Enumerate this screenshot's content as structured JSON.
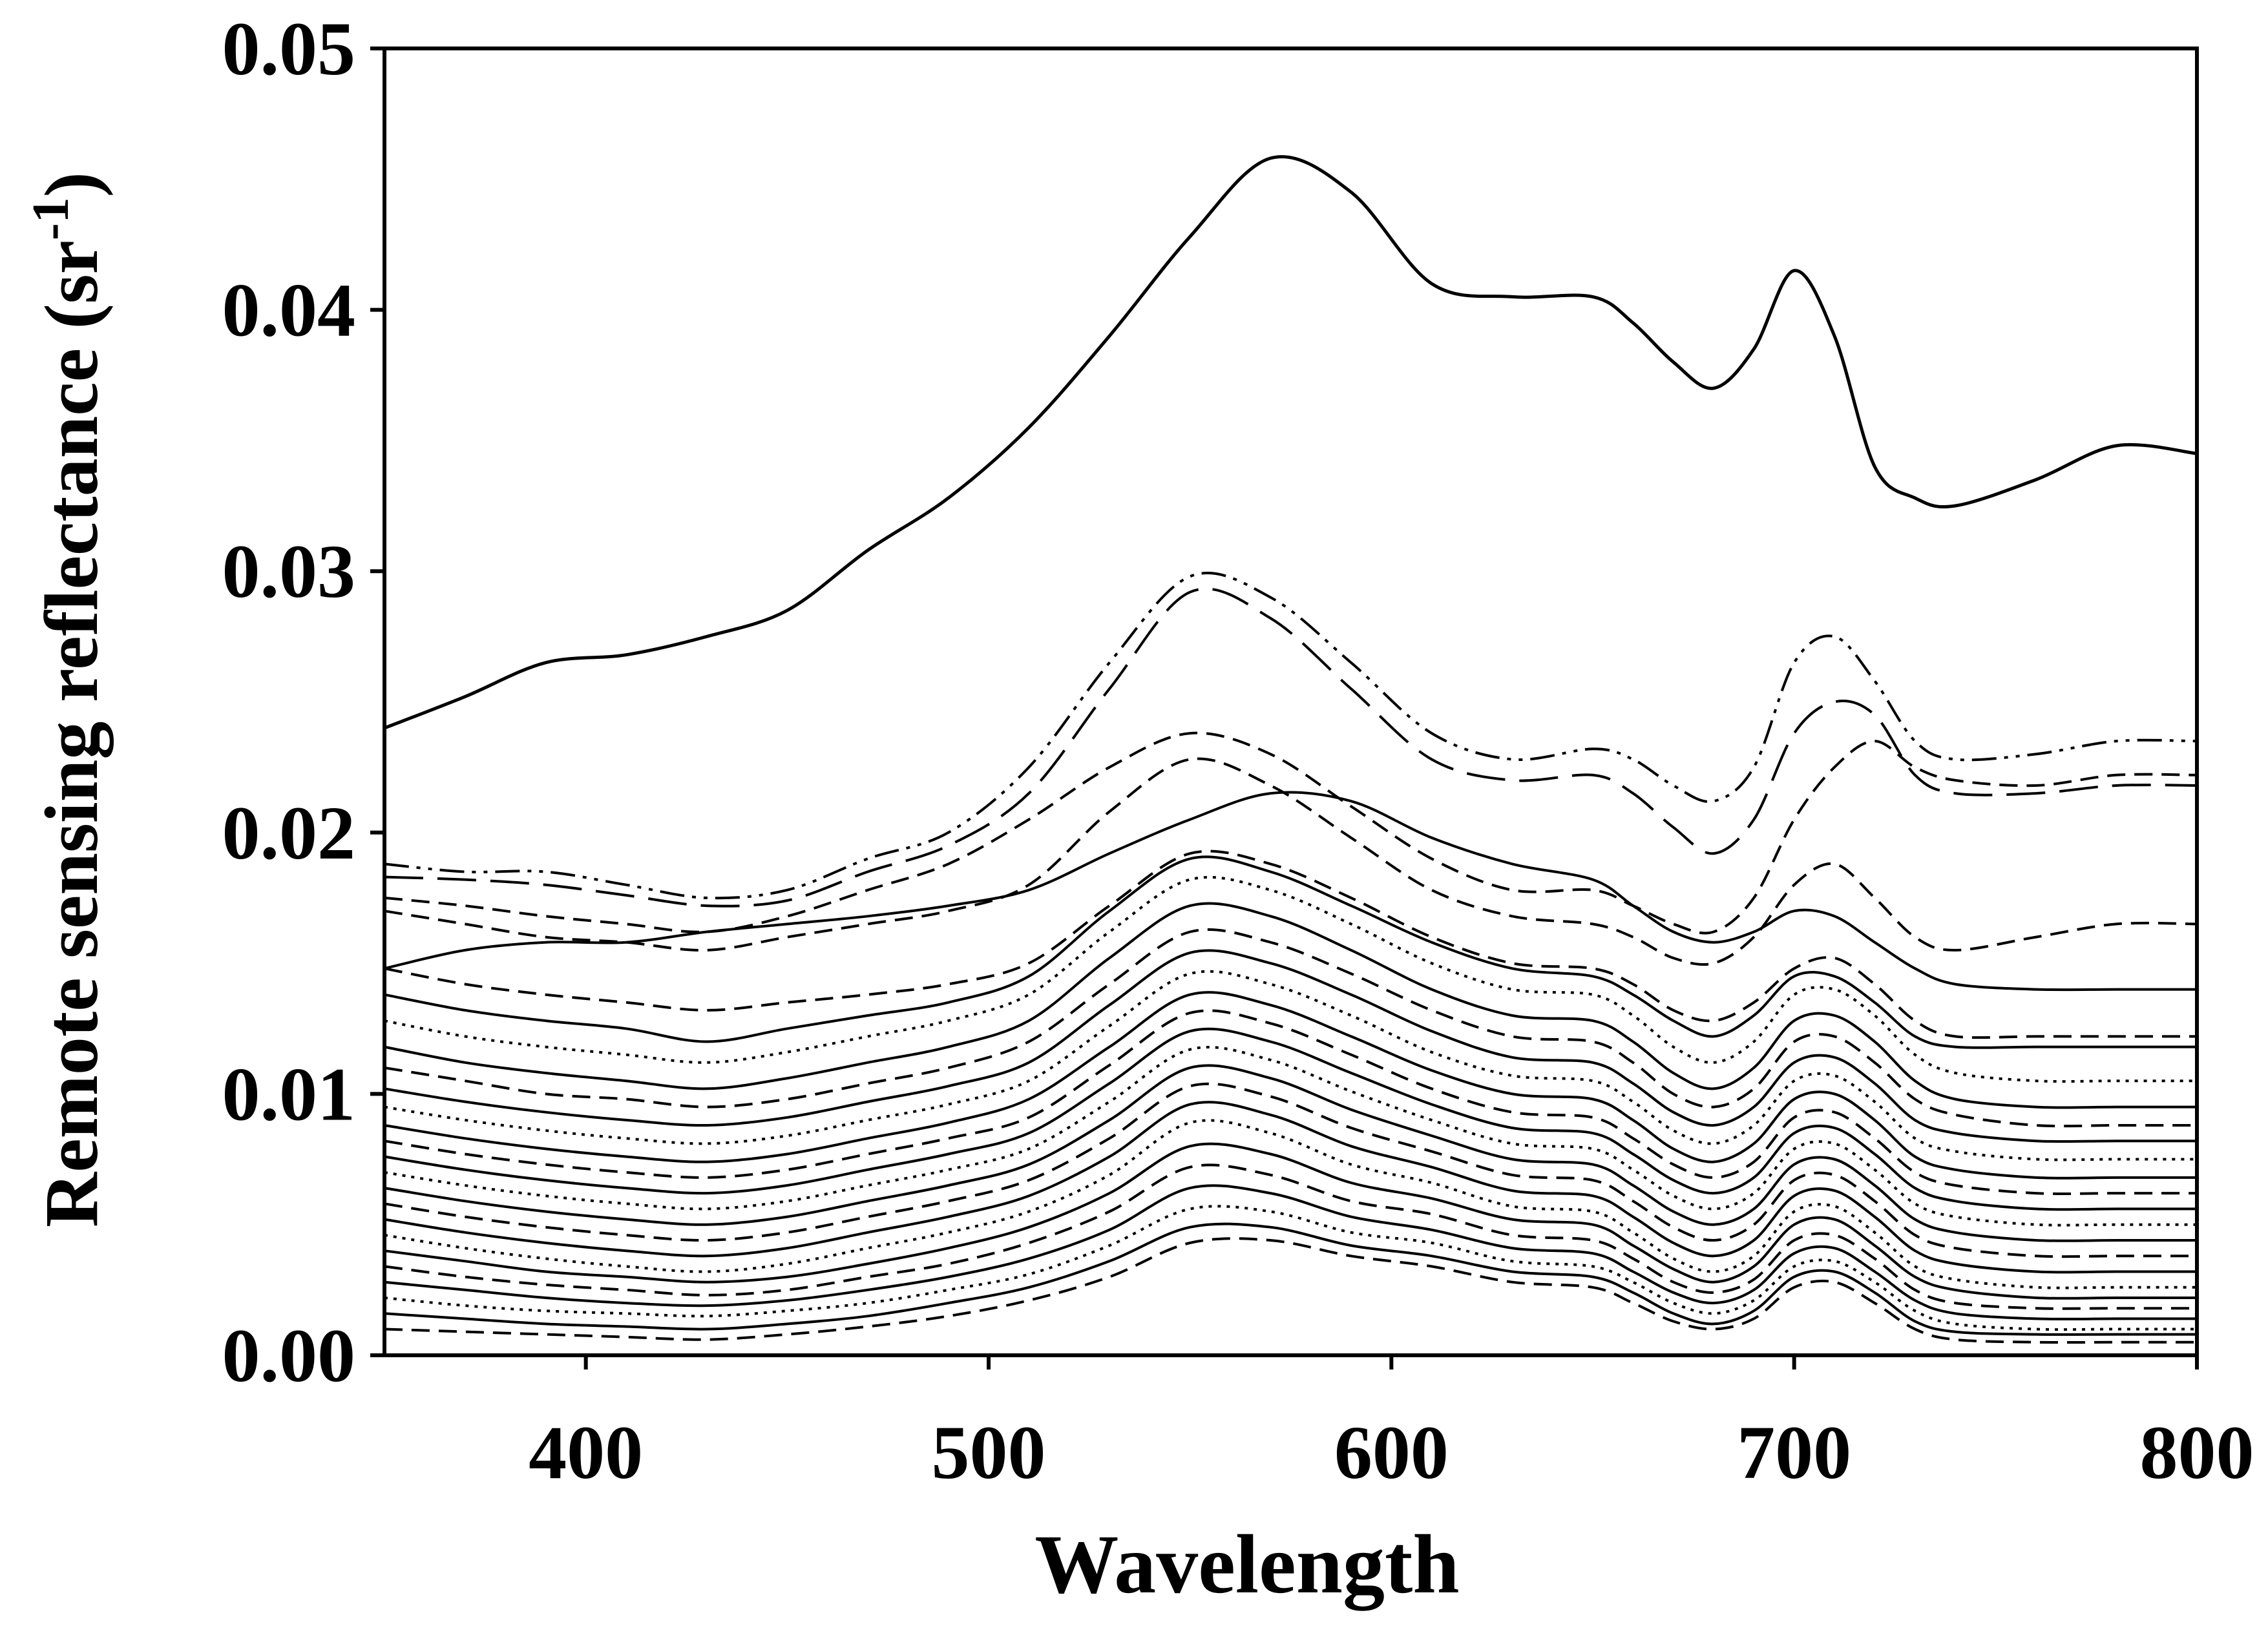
{
  "chart_data": {
    "type": "line",
    "title": "",
    "xlabel": "Wavelength",
    "ylabel_main": "Remote sensing reflectance (sr",
    "ylabel_sup": "-1",
    "ylabel_close": ")",
    "xlim": [
      350,
      800
    ],
    "ylim": [
      0,
      0.05
    ],
    "xticks": [
      400,
      500,
      600,
      700,
      800
    ],
    "xtick_labels": [
      "400",
      "500",
      "600",
      "700",
      "800"
    ],
    "yticks": [
      0,
      0.01,
      0.02,
      0.03,
      0.04,
      0.05
    ],
    "ytick_labels": [
      "0.00",
      "0.01",
      "0.02",
      "0.03",
      "0.04",
      "0.05"
    ],
    "grid": false,
    "legend": "none",
    "line_color": "#000000",
    "x": [
      350,
      370,
      390,
      410,
      430,
      450,
      470,
      490,
      510,
      530,
      550,
      570,
      590,
      610,
      630,
      650,
      660,
      670,
      680,
      690,
      700,
      710,
      720,
      730,
      740,
      760,
      780,
      800
    ],
    "series": [
      {
        "name": "s1",
        "style": "solid",
        "values": [
          0.024,
          0.0252,
          0.0265,
          0.0268,
          0.0275,
          0.0285,
          0.0308,
          0.0328,
          0.0355,
          0.039,
          0.0428,
          0.0458,
          0.0445,
          0.041,
          0.0405,
          0.0405,
          0.0395,
          0.038,
          0.037,
          0.0385,
          0.0415,
          0.039,
          0.034,
          0.0328,
          0.0325,
          0.0335,
          0.0348,
          0.0345
        ]
      },
      {
        "name": "s2",
        "style": "dash-dot-dot",
        "values": [
          0.0188,
          0.0185,
          0.0185,
          0.018,
          0.0175,
          0.0178,
          0.019,
          0.02,
          0.0225,
          0.0265,
          0.0298,
          0.029,
          0.0265,
          0.0238,
          0.0228,
          0.0232,
          0.0228,
          0.0218,
          0.0212,
          0.0225,
          0.0265,
          0.0275,
          0.0258,
          0.0235,
          0.0228,
          0.023,
          0.0235,
          0.0235
        ]
      },
      {
        "name": "s3",
        "style": "long-dash",
        "values": [
          0.0183,
          0.0182,
          0.018,
          0.0176,
          0.0172,
          0.0174,
          0.0185,
          0.0195,
          0.0215,
          0.0255,
          0.0292,
          0.0282,
          0.0255,
          0.0228,
          0.022,
          0.0222,
          0.0215,
          0.0202,
          0.0192,
          0.0205,
          0.0238,
          0.025,
          0.0245,
          0.0222,
          0.0215,
          0.0215,
          0.0218,
          0.0218
        ]
      },
      {
        "name": "s4",
        "style": "dash",
        "values": [
          0.0175,
          0.0172,
          0.0168,
          0.0165,
          0.0162,
          0.0168,
          0.0178,
          0.0188,
          0.0205,
          0.0225,
          0.0238,
          0.023,
          0.021,
          0.019,
          0.0178,
          0.0178,
          0.0172,
          0.0165,
          0.0162,
          0.0175,
          0.0205,
          0.0225,
          0.0235,
          0.0225,
          0.022,
          0.0218,
          0.0222,
          0.0222
        ]
      },
      {
        "name": "s5",
        "style": "solid",
        "values": [
          0.0148,
          0.0155,
          0.0158,
          0.0158,
          0.0162,
          0.0165,
          0.0168,
          0.0172,
          0.0178,
          0.0192,
          0.0205,
          0.0215,
          0.0212,
          0.0198,
          0.0188,
          0.0182,
          0.0172,
          0.0162,
          0.0158,
          0.0162,
          0.017,
          0.0168,
          0.0158,
          0.0148,
          0.0142,
          0.014,
          0.014,
          0.014
        ]
      },
      {
        "name": "s6",
        "style": "dash",
        "values": [
          0.017,
          0.0165,
          0.016,
          0.0158,
          0.0155,
          0.016,
          0.0165,
          0.017,
          0.018,
          0.0208,
          0.0228,
          0.0218,
          0.0198,
          0.0178,
          0.0168,
          0.0165,
          0.016,
          0.0152,
          0.015,
          0.016,
          0.018,
          0.0188,
          0.0175,
          0.016,
          0.0155,
          0.016,
          0.0165,
          0.0165
        ]
      },
      {
        "name": "s7",
        "style": "dash",
        "values": [
          0.0148,
          0.0142,
          0.0138,
          0.0135,
          0.0132,
          0.0135,
          0.0138,
          0.0142,
          0.015,
          0.0172,
          0.0192,
          0.0188,
          0.0175,
          0.016,
          0.015,
          0.0148,
          0.0142,
          0.0132,
          0.0128,
          0.0135,
          0.0148,
          0.0152,
          0.0142,
          0.0128,
          0.0122,
          0.0122,
          0.0122,
          0.0122
        ]
      },
      {
        "name": "s8",
        "style": "solid",
        "values": [
          0.0138,
          0.0132,
          0.0128,
          0.0125,
          0.012,
          0.0125,
          0.013,
          0.0135,
          0.0145,
          0.017,
          0.019,
          0.0185,
          0.0172,
          0.0158,
          0.0148,
          0.0145,
          0.0138,
          0.0128,
          0.0122,
          0.013,
          0.0145,
          0.0145,
          0.0135,
          0.0122,
          0.0118,
          0.0118,
          0.0118,
          0.0118
        ]
      },
      {
        "name": "s9",
        "style": "dotted",
        "values": [
          0.0128,
          0.0122,
          0.0118,
          0.0115,
          0.0112,
          0.0116,
          0.0122,
          0.0128,
          0.0138,
          0.0162,
          0.0182,
          0.0178,
          0.0165,
          0.015,
          0.014,
          0.0138,
          0.013,
          0.0118,
          0.0112,
          0.012,
          0.0138,
          0.014,
          0.013,
          0.0115,
          0.0108,
          0.0105,
          0.0105,
          0.0105
        ]
      },
      {
        "name": "s10",
        "style": "solid",
        "values": [
          0.0118,
          0.0112,
          0.0108,
          0.0105,
          0.0102,
          0.0106,
          0.0112,
          0.0118,
          0.0128,
          0.0152,
          0.0172,
          0.0168,
          0.0155,
          0.014,
          0.013,
          0.0128,
          0.012,
          0.0108,
          0.0102,
          0.011,
          0.0128,
          0.013,
          0.012,
          0.0105,
          0.0098,
          0.0095,
          0.0095,
          0.0095
        ]
      },
      {
        "name": "s11",
        "style": "dash",
        "values": [
          0.011,
          0.0105,
          0.01,
          0.0098,
          0.0095,
          0.0098,
          0.0104,
          0.011,
          0.012,
          0.0142,
          0.0162,
          0.0158,
          0.0146,
          0.0132,
          0.0122,
          0.012,
          0.0112,
          0.01,
          0.0095,
          0.0102,
          0.012,
          0.0122,
          0.0112,
          0.0098,
          0.0092,
          0.0088,
          0.0088,
          0.0088
        ]
      },
      {
        "name": "s12",
        "style": "solid",
        "values": [
          0.0102,
          0.0097,
          0.0093,
          0.009,
          0.0088,
          0.0091,
          0.0097,
          0.0103,
          0.0112,
          0.0134,
          0.0154,
          0.015,
          0.0138,
          0.0124,
          0.0114,
          0.0112,
          0.0104,
          0.0093,
          0.0088,
          0.0095,
          0.0112,
          0.0114,
          0.0104,
          0.009,
          0.0085,
          0.0082,
          0.0082,
          0.0082
        ]
      },
      {
        "name": "s13",
        "style": "dotted",
        "values": [
          0.0095,
          0.009,
          0.0086,
          0.0083,
          0.0081,
          0.0084,
          0.009,
          0.0096,
          0.0105,
          0.0126,
          0.0146,
          0.0142,
          0.013,
          0.0116,
          0.0107,
          0.0105,
          0.0097,
          0.0086,
          0.0081,
          0.0088,
          0.0105,
          0.0107,
          0.0097,
          0.0083,
          0.0078,
          0.0075,
          0.0075,
          0.0075
        ]
      },
      {
        "name": "s14",
        "style": "solid",
        "values": [
          0.0088,
          0.0083,
          0.0079,
          0.0076,
          0.0074,
          0.0077,
          0.0083,
          0.0089,
          0.0098,
          0.0118,
          0.0138,
          0.0134,
          0.0122,
          0.0109,
          0.01,
          0.0098,
          0.009,
          0.0079,
          0.0074,
          0.0081,
          0.0098,
          0.01,
          0.009,
          0.0076,
          0.0071,
          0.0068,
          0.0068,
          0.0068
        ]
      },
      {
        "name": "s15",
        "style": "dash",
        "values": [
          0.0082,
          0.0077,
          0.0073,
          0.007,
          0.0068,
          0.0071,
          0.0077,
          0.0083,
          0.0091,
          0.0111,
          0.0131,
          0.0127,
          0.0115,
          0.0102,
          0.0093,
          0.0091,
          0.0083,
          0.0073,
          0.0068,
          0.0074,
          0.0091,
          0.0093,
          0.0083,
          0.007,
          0.0065,
          0.0062,
          0.0062,
          0.0062
        ]
      },
      {
        "name": "s16",
        "style": "solid",
        "values": [
          0.0076,
          0.0071,
          0.0067,
          0.0064,
          0.0062,
          0.0065,
          0.0071,
          0.0077,
          0.0085,
          0.0104,
          0.0124,
          0.012,
          0.0108,
          0.0096,
          0.0087,
          0.0085,
          0.0077,
          0.0067,
          0.0062,
          0.0068,
          0.0085,
          0.0087,
          0.0077,
          0.0064,
          0.0059,
          0.0056,
          0.0056,
          0.0056
        ]
      },
      {
        "name": "s17",
        "style": "dotted",
        "values": [
          0.007,
          0.0065,
          0.0061,
          0.0058,
          0.0056,
          0.0059,
          0.0065,
          0.0071,
          0.0079,
          0.0097,
          0.0117,
          0.0113,
          0.0101,
          0.009,
          0.0081,
          0.0079,
          0.0071,
          0.0061,
          0.0056,
          0.0062,
          0.0079,
          0.0081,
          0.0071,
          0.0058,
          0.0053,
          0.005,
          0.005,
          0.005
        ]
      },
      {
        "name": "s18",
        "style": "solid",
        "values": [
          0.0064,
          0.0059,
          0.0055,
          0.0052,
          0.005,
          0.0053,
          0.0059,
          0.0065,
          0.0073,
          0.009,
          0.011,
          0.0106,
          0.0094,
          0.0084,
          0.0075,
          0.0073,
          0.0065,
          0.0055,
          0.005,
          0.0056,
          0.0073,
          0.0075,
          0.0065,
          0.0052,
          0.0047,
          0.0044,
          0.0044,
          0.0044
        ]
      },
      {
        "name": "s19",
        "style": "dash",
        "values": [
          0.0058,
          0.0053,
          0.0049,
          0.0046,
          0.0044,
          0.0047,
          0.0053,
          0.0059,
          0.0067,
          0.0083,
          0.0103,
          0.0099,
          0.0087,
          0.0078,
          0.0069,
          0.0067,
          0.0059,
          0.0049,
          0.0044,
          0.005,
          0.0067,
          0.0069,
          0.0059,
          0.0046,
          0.0041,
          0.0038,
          0.0038,
          0.0038
        ]
      },
      {
        "name": "s20",
        "style": "solid",
        "values": [
          0.0052,
          0.0047,
          0.0043,
          0.004,
          0.0038,
          0.0041,
          0.0047,
          0.0053,
          0.0061,
          0.0076,
          0.0096,
          0.0092,
          0.008,
          0.0072,
          0.0063,
          0.0061,
          0.0053,
          0.0043,
          0.0038,
          0.0044,
          0.0061,
          0.0063,
          0.0053,
          0.004,
          0.0035,
          0.0032,
          0.0032,
          0.0032
        ]
      },
      {
        "name": "s21",
        "style": "dotted",
        "values": [
          0.0046,
          0.0041,
          0.0037,
          0.0034,
          0.0032,
          0.0035,
          0.0041,
          0.0047,
          0.0055,
          0.0069,
          0.0089,
          0.0085,
          0.0073,
          0.0066,
          0.0057,
          0.0055,
          0.0047,
          0.0037,
          0.0032,
          0.0038,
          0.0055,
          0.0057,
          0.0047,
          0.0034,
          0.0029,
          0.0026,
          0.0026,
          0.0026
        ]
      },
      {
        "name": "s22",
        "style": "solid",
        "values": [
          0.004,
          0.0036,
          0.0032,
          0.003,
          0.0028,
          0.003,
          0.0035,
          0.0041,
          0.0049,
          0.0062,
          0.008,
          0.0077,
          0.0066,
          0.006,
          0.0052,
          0.005,
          0.0042,
          0.0033,
          0.0028,
          0.0034,
          0.005,
          0.0052,
          0.0042,
          0.003,
          0.0025,
          0.0022,
          0.0022,
          0.0022
        ]
      },
      {
        "name": "s23",
        "style": "dash",
        "values": [
          0.0034,
          0.003,
          0.0027,
          0.0025,
          0.0023,
          0.0025,
          0.003,
          0.0035,
          0.0043,
          0.0055,
          0.0072,
          0.0069,
          0.0059,
          0.0054,
          0.0046,
          0.0044,
          0.0037,
          0.0028,
          0.0024,
          0.0029,
          0.0044,
          0.0046,
          0.0037,
          0.0025,
          0.002,
          0.0018,
          0.0018,
          0.0018
        ]
      },
      {
        "name": "s24",
        "style": "solid",
        "values": [
          0.0028,
          0.0025,
          0.0022,
          0.002,
          0.0019,
          0.0021,
          0.0025,
          0.003,
          0.0037,
          0.0048,
          0.0064,
          0.0062,
          0.0053,
          0.0048,
          0.0041,
          0.0039,
          0.0032,
          0.0024,
          0.002,
          0.0025,
          0.0039,
          0.0041,
          0.0032,
          0.0021,
          0.0016,
          0.0014,
          0.0014,
          0.0014
        ]
      },
      {
        "name": "s25",
        "style": "dotted",
        "values": [
          0.0022,
          0.0019,
          0.0017,
          0.0016,
          0.0015,
          0.0017,
          0.002,
          0.0025,
          0.0031,
          0.0042,
          0.0056,
          0.0055,
          0.0047,
          0.0043,
          0.0036,
          0.0034,
          0.0028,
          0.002,
          0.0016,
          0.0021,
          0.0034,
          0.0036,
          0.0028,
          0.0017,
          0.0012,
          0.001,
          0.001,
          0.001
        ]
      },
      {
        "name": "s26",
        "style": "solid",
        "values": [
          0.0016,
          0.0014,
          0.0012,
          0.0011,
          0.001,
          0.0012,
          0.0015,
          0.002,
          0.0026,
          0.0036,
          0.0049,
          0.0049,
          0.0042,
          0.0038,
          0.0032,
          0.003,
          0.0024,
          0.0016,
          0.0012,
          0.0017,
          0.003,
          0.0032,
          0.0024,
          0.0013,
          0.0009,
          0.0008,
          0.0008,
          0.0008
        ]
      },
      {
        "name": "s27",
        "style": "dash",
        "values": [
          0.001,
          0.0009,
          0.0008,
          0.0007,
          0.0006,
          0.0008,
          0.0011,
          0.0015,
          0.0021,
          0.003,
          0.0043,
          0.0044,
          0.0038,
          0.0034,
          0.0028,
          0.0026,
          0.002,
          0.0013,
          0.001,
          0.0014,
          0.0026,
          0.0028,
          0.002,
          0.001,
          0.0006,
          0.0005,
          0.0005,
          0.0005
        ]
      }
    ]
  }
}
